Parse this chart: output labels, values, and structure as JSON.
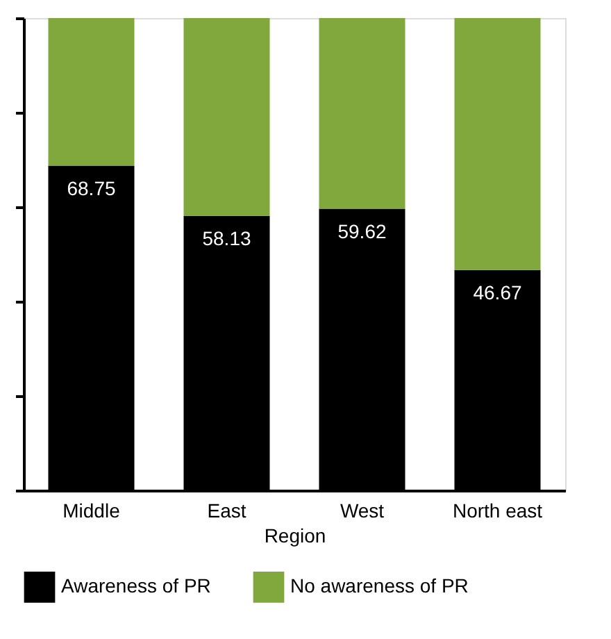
{
  "chart_data": {
    "type": "bar",
    "stacked": true,
    "xlabel": "Region",
    "categories": [
      "Middle",
      "East",
      "West",
      "North east"
    ],
    "series": [
      {
        "name": "Awareness of PR",
        "color": "#000000",
        "values": [
          68.75,
          58.13,
          59.62,
          46.67
        ],
        "value_labels": [
          "68.75",
          "58.13",
          "59.62",
          "46.67"
        ]
      },
      {
        "name": "No awareness of PR",
        "color": "#80a83c",
        "values": [
          31.25,
          41.87,
          40.38,
          53.33
        ]
      }
    ],
    "ylim": [
      0,
      100
    ],
    "yticks": [
      {
        "value": 0,
        "label": null
      },
      {
        "value": 20,
        "label": null
      },
      {
        "value": 40,
        "label": null
      },
      {
        "value": 60,
        "label": null
      },
      {
        "value": 80,
        "label": null
      },
      {
        "value": 100,
        "label": null
      }
    ],
    "tick_labels": "x",
    "grid": false,
    "legend": "bottom"
  }
}
